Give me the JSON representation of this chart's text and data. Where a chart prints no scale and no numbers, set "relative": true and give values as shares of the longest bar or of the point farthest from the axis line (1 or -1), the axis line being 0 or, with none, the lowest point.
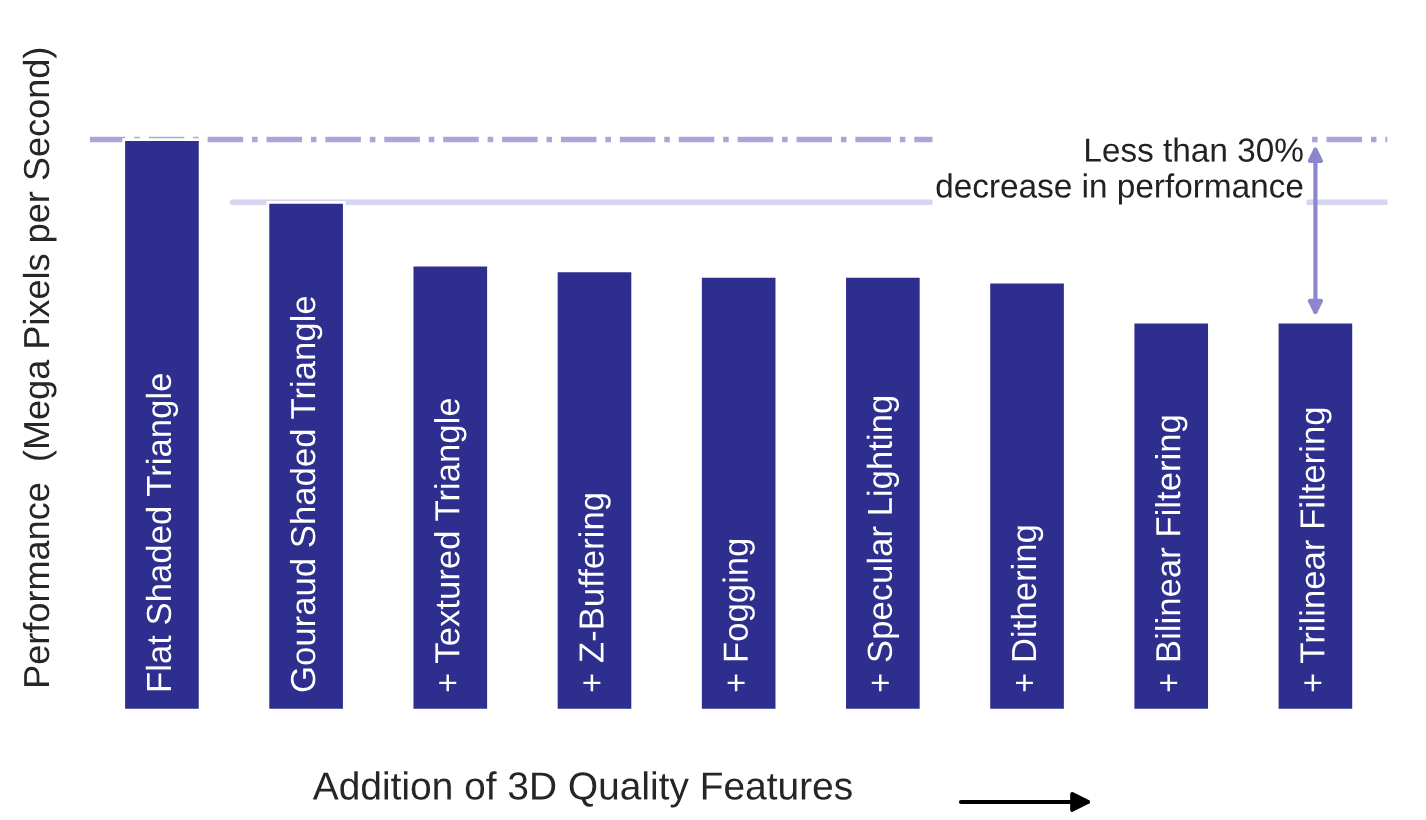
{
  "chart_data": {
    "type": "bar",
    "relative": true,
    "xlabel": "Addition of 3D Quality Features",
    "ylabel": "Performance  (Mega Pixels per Second)",
    "categories": [
      "Flat Shaded Triangle",
      "Gouraud Shaded Triangle",
      "+ Textured Triangle",
      "+ Z-Buffering",
      "+ Fogging",
      "+ Specular Lighting",
      "+ Dithering",
      "+ Bilinear Filtering",
      "+ Trilinear Filtering"
    ],
    "values": [
      1,
      0.89,
      0.78,
      0.77,
      0.76,
      0.76,
      0.75,
      0.68,
      0.68
    ],
    "color": "#2e2e8f",
    "ref_lines": [
      {
        "axis": "y",
        "value": 1,
        "color": "#aaa6dc",
        "line_style": "dashdot"
      },
      {
        "axis": "y",
        "value": 0.89,
        "color": "#d6d4ef",
        "line_style": "solid"
      }
    ],
    "annotations": [
      "Less than 30%\ndecrease in performance"
    ]
  }
}
